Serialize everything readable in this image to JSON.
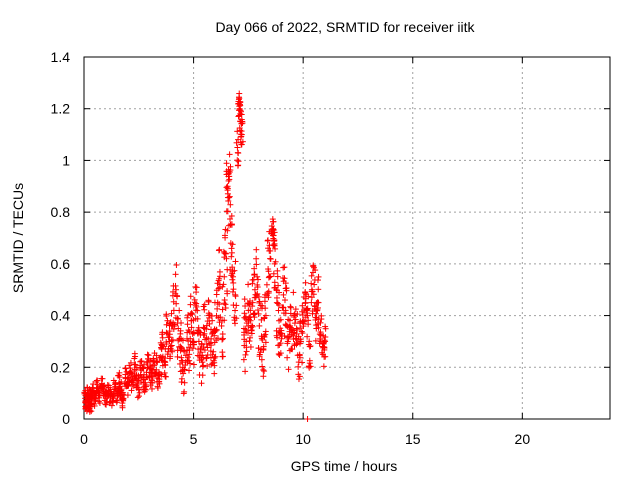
{
  "chart_data": {
    "type": "scatter",
    "title": "Day 066 of 2022, SRMTID for receiver iitk",
    "xlabel": "GPS time / hours",
    "ylabel": "SRMTID / TECUs",
    "xlim": [
      0,
      24
    ],
    "ylim": [
      0,
      1.4
    ],
    "xticks": [
      0,
      5,
      10,
      15,
      20
    ],
    "xtick_labels": [
      "0",
      "5",
      "10",
      "15",
      "20"
    ],
    "yticks": [
      0,
      0.2,
      0.4,
      0.6,
      0.8,
      1.0,
      1.2,
      1.4
    ],
    "ytick_labels": [
      "0",
      "0.2",
      "0.4",
      "0.6",
      "0.8",
      "1",
      "1.2",
      "1.4"
    ],
    "grid": true,
    "marker": "+",
    "marker_color": "#ff0000",
    "series": [
      {
        "name": "SRMTID",
        "x": [
          0.05,
          0.1,
          0.15,
          0.2,
          0.25,
          0.3,
          0.35,
          0.4,
          0.5,
          0.6,
          0.7,
          0.8,
          0.9,
          1.0,
          1.1,
          1.2,
          1.3,
          1.4,
          1.5,
          1.6,
          1.7,
          1.8,
          1.9,
          2.0,
          2.1,
          2.2,
          2.3,
          2.4,
          2.5,
          2.6,
          2.7,
          2.8,
          2.9,
          3.0,
          3.1,
          3.2,
          3.3,
          3.4,
          3.5,
          3.6,
          3.7,
          3.8,
          3.9,
          4.0,
          4.1,
          4.2,
          4.3,
          4.4,
          4.5,
          4.6,
          4.7,
          4.8,
          4.9,
          5.0,
          5.1,
          5.2,
          5.3,
          5.4,
          5.5,
          5.6,
          5.7,
          5.8,
          5.9,
          6.0,
          6.1,
          6.2,
          6.3,
          6.4,
          6.5,
          6.55,
          6.6,
          6.65,
          6.7,
          6.8,
          6.9,
          7.0,
          7.05,
          7.1,
          7.15,
          7.2,
          7.3,
          7.4,
          7.5,
          7.6,
          7.7,
          7.8,
          7.9,
          8.0,
          8.1,
          8.2,
          8.3,
          8.4,
          8.5,
          8.6,
          8.65,
          8.7,
          8.8,
          8.9,
          9.0,
          9.1,
          9.2,
          9.3,
          9.4,
          9.5,
          9.6,
          9.7,
          9.8,
          9.9,
          10.0,
          10.1,
          10.2,
          10.3,
          10.4,
          10.5,
          10.6,
          10.7,
          10.8,
          10.9,
          11.0
        ],
        "y": [
          0.08,
          0.05,
          0.1,
          0.07,
          0.04,
          0.09,
          0.06,
          0.11,
          0.08,
          0.12,
          0.09,
          0.13,
          0.1,
          0.08,
          0.11,
          0.09,
          0.07,
          0.12,
          0.1,
          0.14,
          0.11,
          0.08,
          0.16,
          0.13,
          0.18,
          0.15,
          0.21,
          0.17,
          0.12,
          0.19,
          0.16,
          0.14,
          0.2,
          0.18,
          0.15,
          0.22,
          0.19,
          0.17,
          0.24,
          0.28,
          0.21,
          0.33,
          0.3,
          0.36,
          0.42,
          0.5,
          0.35,
          0.28,
          0.22,
          0.19,
          0.31,
          0.25,
          0.38,
          0.3,
          0.44,
          0.33,
          0.27,
          0.22,
          0.35,
          0.29,
          0.4,
          0.31,
          0.26,
          0.34,
          0.45,
          0.52,
          0.38,
          0.55,
          0.62,
          0.9,
          0.95,
          0.86,
          0.68,
          0.55,
          0.48,
          1.05,
          1.22,
          1.2,
          1.15,
          1.1,
          0.35,
          0.3,
          0.42,
          0.38,
          0.45,
          0.5,
          0.55,
          0.36,
          0.32,
          0.28,
          0.4,
          0.58,
          0.65,
          0.73,
          0.71,
          0.6,
          0.45,
          0.38,
          0.33,
          0.48,
          0.42,
          0.3,
          0.36,
          0.27,
          0.4,
          0.35,
          0.22,
          0.3,
          0.38,
          0.45,
          0.4,
          0.28,
          0.5,
          0.52,
          0.35,
          0.45,
          0.3,
          0.25,
          0.3
        ],
        "y_spread": [
          0.03,
          0.03,
          0.03,
          0.03,
          0.03,
          0.03,
          0.03,
          0.03,
          0.03,
          0.03,
          0.03,
          0.03,
          0.03,
          0.03,
          0.03,
          0.03,
          0.03,
          0.03,
          0.04,
          0.04,
          0.04,
          0.04,
          0.04,
          0.04,
          0.04,
          0.04,
          0.05,
          0.05,
          0.05,
          0.05,
          0.05,
          0.05,
          0.05,
          0.05,
          0.05,
          0.05,
          0.06,
          0.06,
          0.07,
          0.08,
          0.07,
          0.09,
          0.09,
          0.1,
          0.12,
          0.12,
          0.12,
          0.1,
          0.1,
          0.1,
          0.1,
          0.1,
          0.1,
          0.1,
          0.1,
          0.1,
          0.1,
          0.1,
          0.1,
          0.1,
          0.12,
          0.12,
          0.1,
          0.12,
          0.14,
          0.16,
          0.14,
          0.18,
          0.2,
          0.1,
          0.1,
          0.12,
          0.15,
          0.14,
          0.14,
          0.08,
          0.05,
          0.05,
          0.06,
          0.08,
          0.14,
          0.12,
          0.12,
          0.12,
          0.12,
          0.12,
          0.14,
          0.12,
          0.12,
          0.12,
          0.14,
          0.12,
          0.1,
          0.05,
          0.05,
          0.1,
          0.14,
          0.14,
          0.12,
          0.12,
          0.12,
          0.12,
          0.12,
          0.1,
          0.12,
          0.12,
          0.1,
          0.1,
          0.1,
          0.1,
          0.1,
          0.1,
          0.1,
          0.1,
          0.1,
          0.1,
          0.1,
          0.08,
          0.06
        ],
        "outlier": {
          "x": 10.2,
          "y": 0.0
        }
      }
    ]
  }
}
